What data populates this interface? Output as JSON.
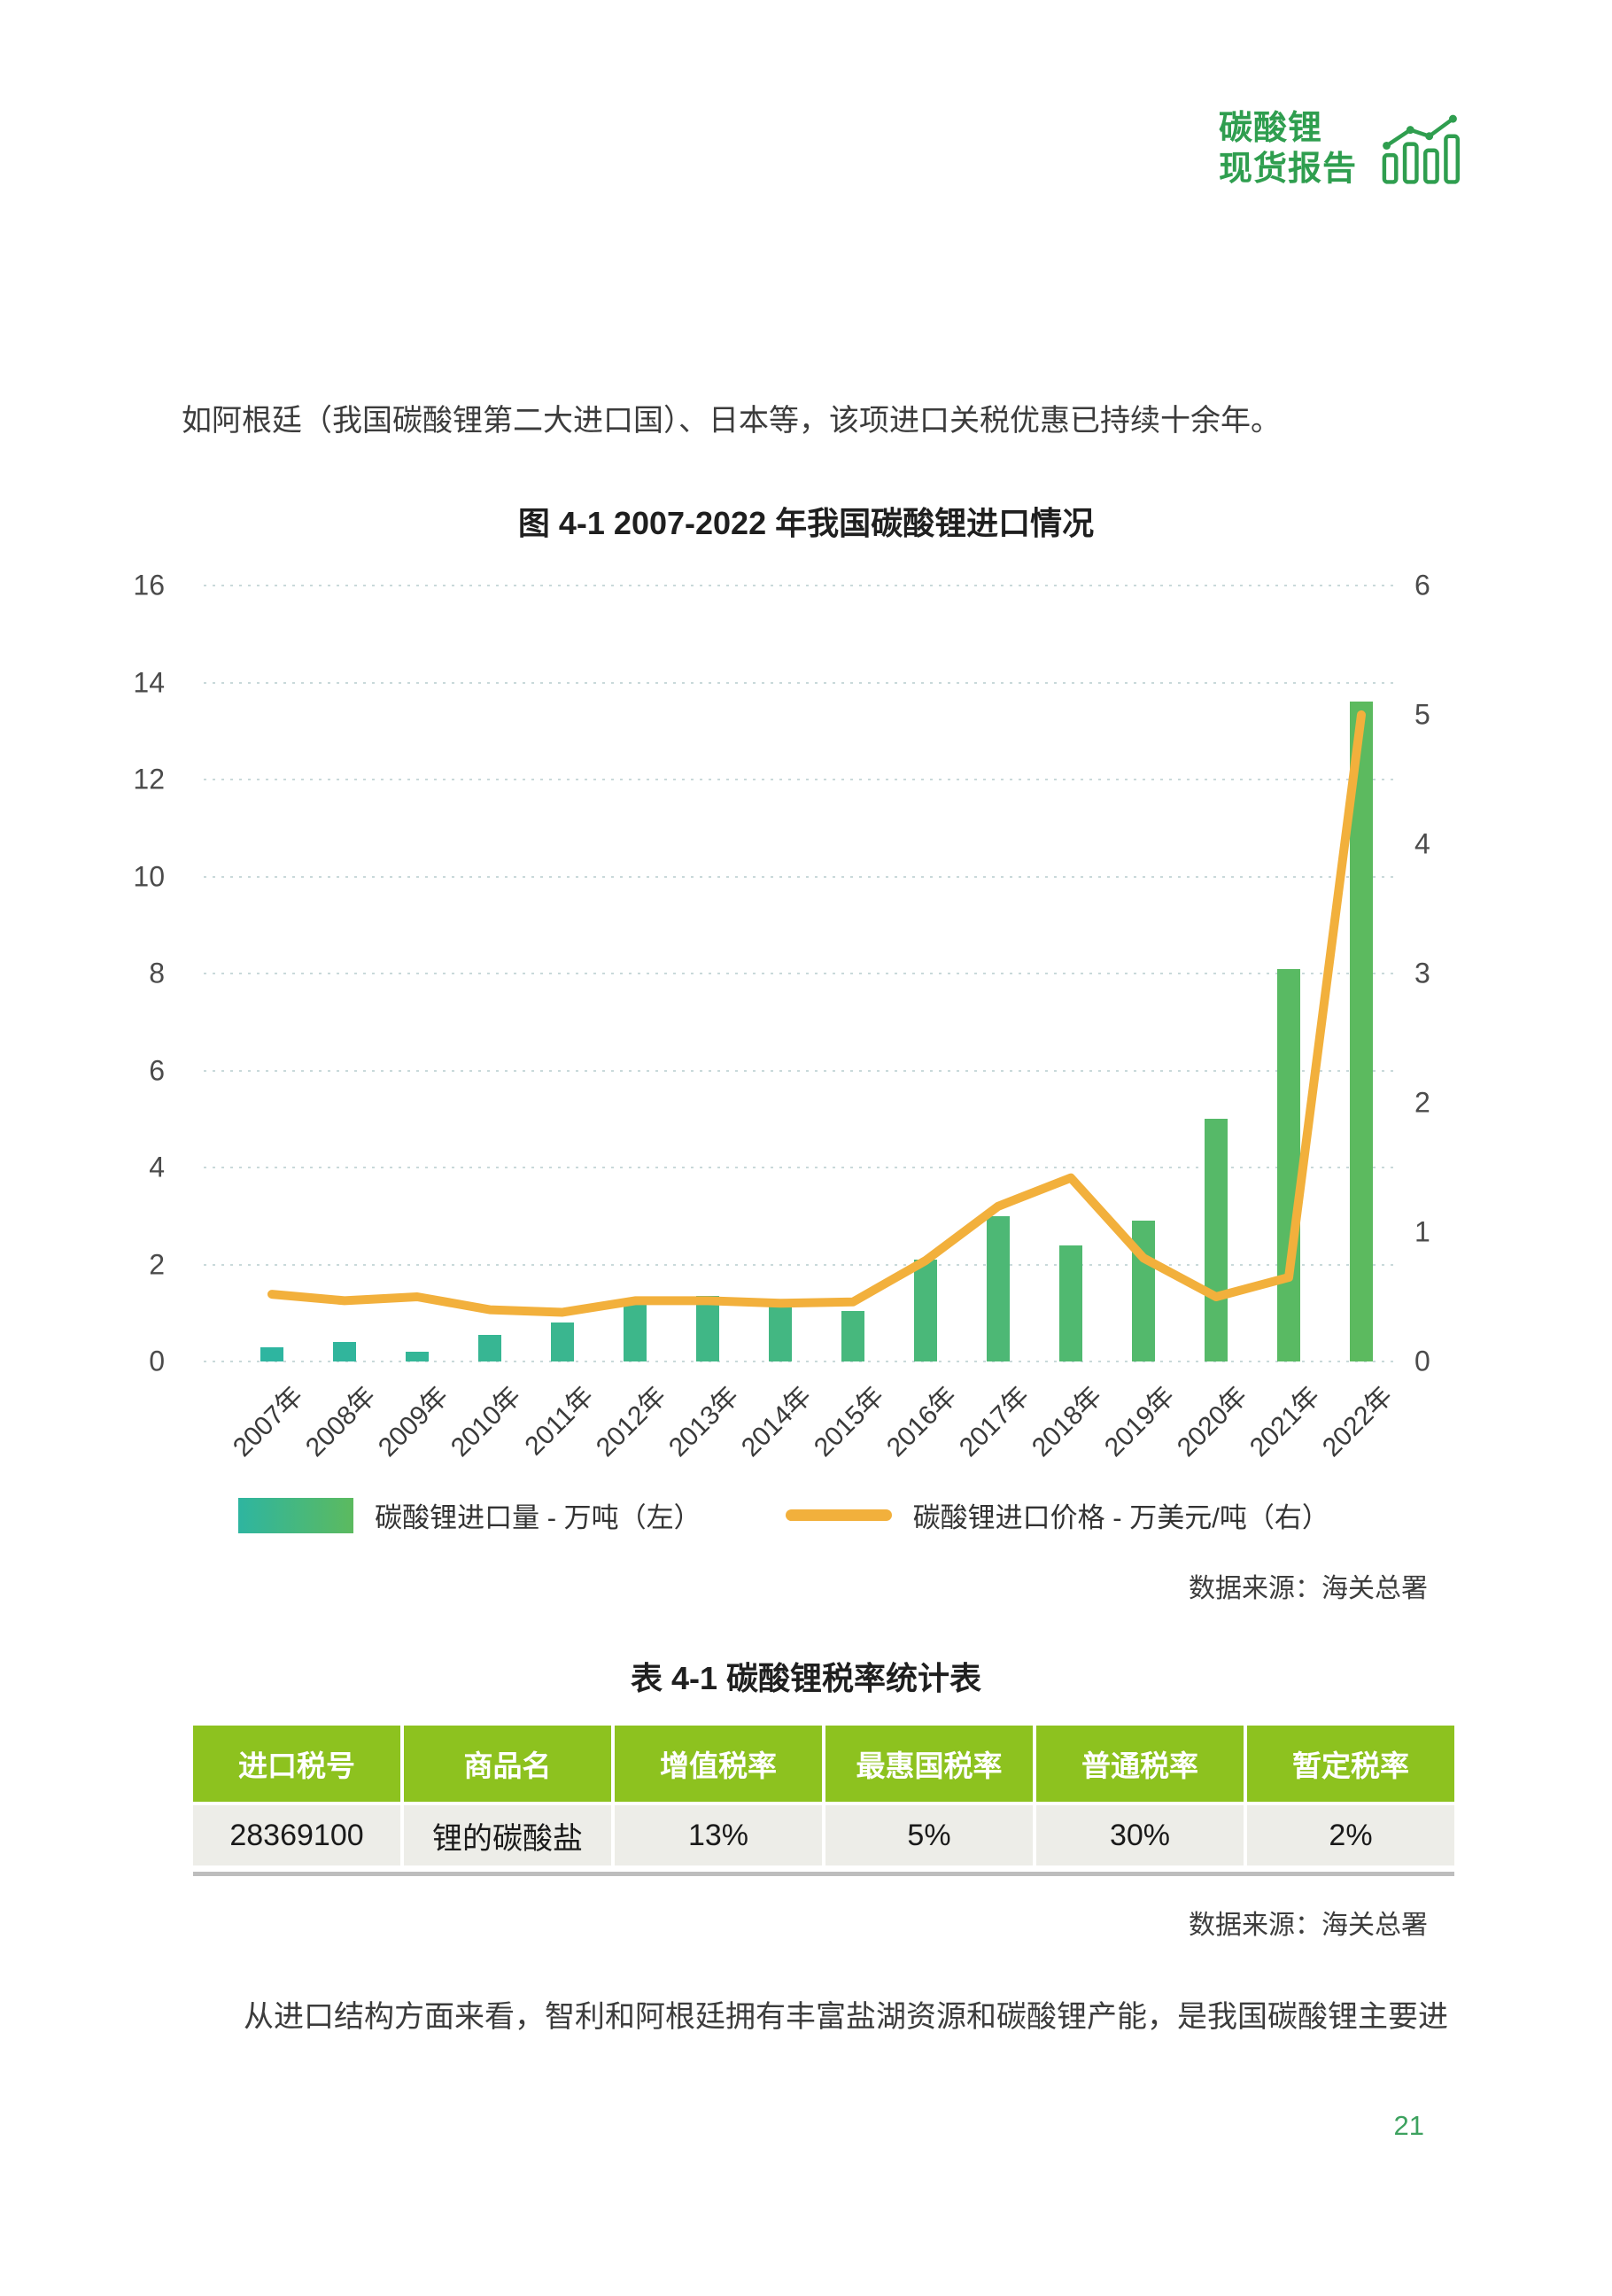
{
  "logo": {
    "line1": "碳酸锂",
    "line2": "现货报告"
  },
  "paragraphs": {
    "p1": "如阿根廷（我国碳酸锂第二大进口国）、日本等，该项进口关税优惠已持续十余年。",
    "p2": "从进口结构方面来看，智利和阿根廷拥有丰富盐湖资源和碳酸锂产能，是我国碳酸锂主要进"
  },
  "chart_data": {
    "type": "bar+line combo",
    "title": "图 4-1 2007-2022 年我国碳酸锂进口情况",
    "categories": [
      "2007年",
      "2008年",
      "2009年",
      "2010年",
      "2011年",
      "2012年",
      "2013年",
      "2014年",
      "2015年",
      "2016年",
      "2017年",
      "2018年",
      "2019年",
      "2020年",
      "2021年",
      "2022年"
    ],
    "series": [
      {
        "name": "碳酸锂进口量 - 万吨（左）",
        "type": "bar",
        "axis": "left",
        "values": [
          0.3,
          0.4,
          0.2,
          0.55,
          0.8,
          1.2,
          1.35,
          1.2,
          1.05,
          2.1,
          3.0,
          2.4,
          2.9,
          5.0,
          8.1,
          13.6
        ]
      },
      {
        "name": "碳酸锂进口价格 - 万美元/吨（右）",
        "type": "line",
        "axis": "right",
        "values": [
          0.52,
          0.47,
          0.5,
          0.4,
          0.38,
          0.47,
          0.47,
          0.45,
          0.46,
          0.78,
          1.2,
          1.42,
          0.8,
          0.5,
          0.65,
          5.0
        ]
      }
    ],
    "left_axis": {
      "min": 0,
      "max": 16,
      "step": 2
    },
    "right_axis": {
      "min": 0,
      "max": 6,
      "step": 1
    },
    "grid": "dotted horizontal",
    "legend_position": "bottom"
  },
  "chart_source": "数据来源：海关总署",
  "table": {
    "title": "表 4-1 碳酸锂税率统计表",
    "headers": [
      "进口税号",
      "商品名",
      "增值税率",
      "最惠国税率",
      "普通税率",
      "暂定税率"
    ],
    "rows": [
      [
        "28369100",
        "锂的碳酸盐",
        "13%",
        "5%",
        "30%",
        "2%"
      ]
    ],
    "source": "数据来源：海关总署"
  },
  "page_number": "21",
  "colors": {
    "brand_green": "#2f9e4f",
    "bar_gradient_start": "#2eb5a0",
    "bar_gradient_end": "#5cba5f",
    "line_yellow": "#f2b03c",
    "gridline": "#c9d9da",
    "table_header_bg": "#8dc21f",
    "table_row_bg": "#edede8",
    "page_number_green": "#3da25f"
  }
}
